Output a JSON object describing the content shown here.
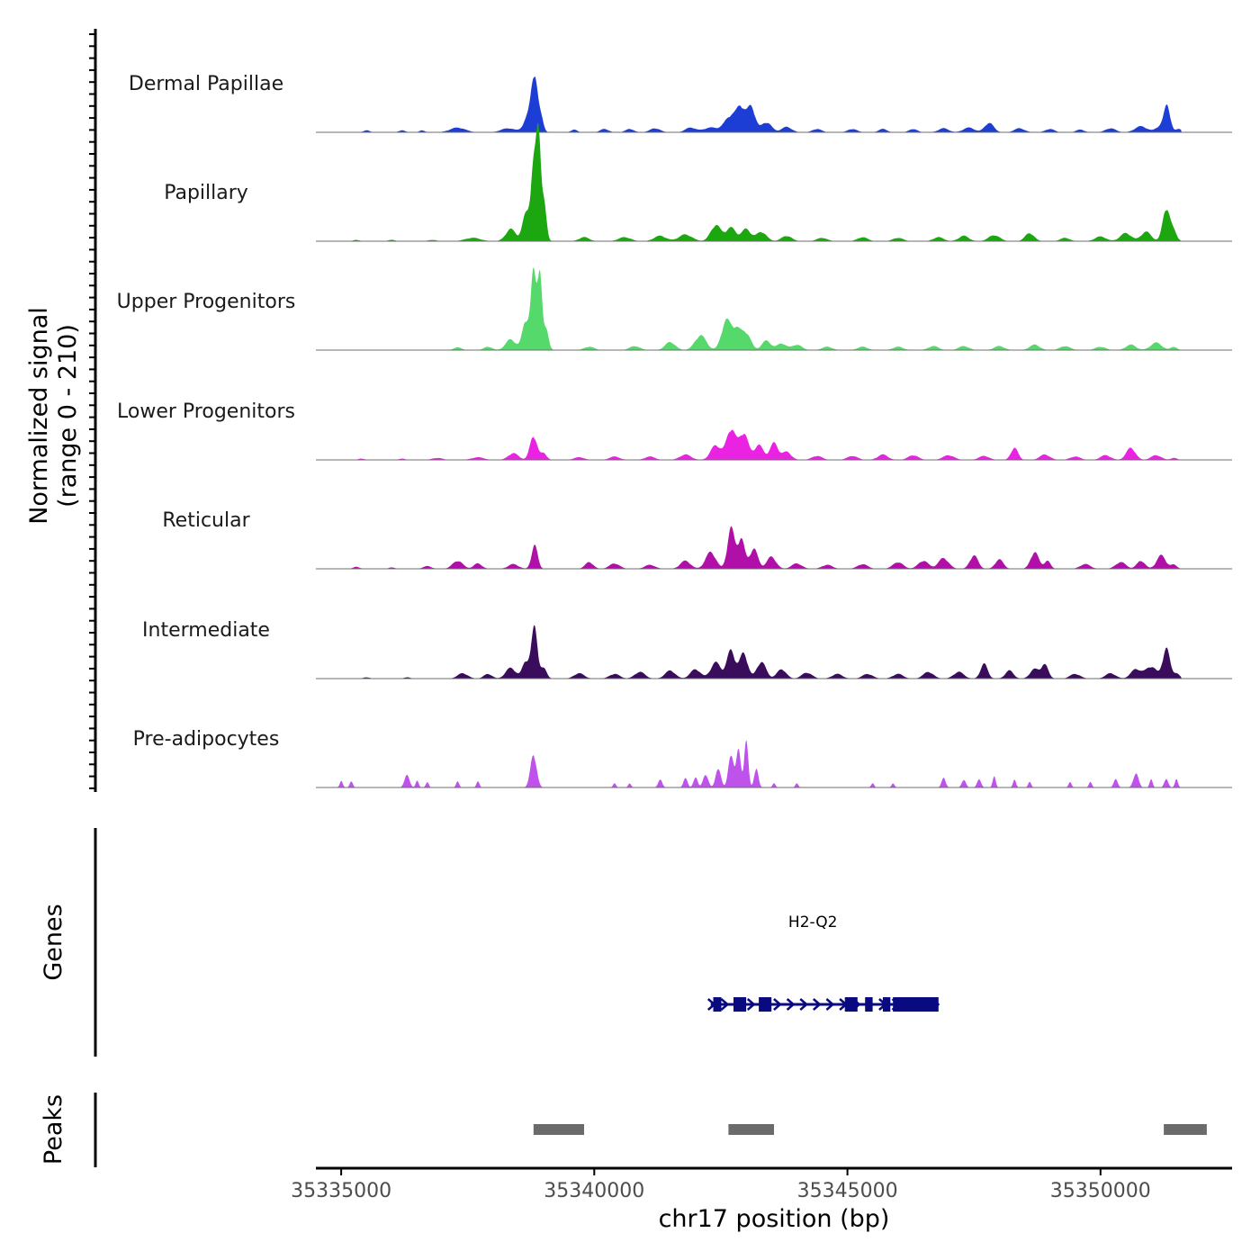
{
  "chart_data": {
    "type": "area",
    "title": "",
    "chromosome": "chr17",
    "xlabel": "chr17 position (bp)",
    "ylabel_line1": "Normalized signal",
    "ylabel_line2": "(range 0 - 210)",
    "xlim": [
      35334500,
      35352600
    ],
    "ylim": [
      0,
      210
    ],
    "x_ticks": [
      35335000,
      35340000,
      35345000,
      35350000
    ],
    "x_tick_labels": [
      "35335000",
      "35340000",
      "35345000",
      "35350000"
    ],
    "series": [
      {
        "name": "Dermal Papillae",
        "color": "#1c3ed4",
        "peaks": [
          [
            35335500,
            3,
            60
          ],
          [
            35336200,
            3,
            60
          ],
          [
            35336600,
            3,
            50
          ],
          [
            35337300,
            7,
            150
          ],
          [
            35338300,
            6,
            140
          ],
          [
            35338700,
            24,
            90
          ],
          [
            35338820,
            80,
            60
          ],
          [
            35338950,
            20,
            50
          ],
          [
            35339600,
            4,
            60
          ],
          [
            35340200,
            5,
            80
          ],
          [
            35340700,
            5,
            80
          ],
          [
            35341200,
            6,
            100
          ],
          [
            35341900,
            7,
            100
          ],
          [
            35342300,
            7,
            150
          ],
          [
            35342700,
            25,
            120
          ],
          [
            35342900,
            33,
            80
          ],
          [
            35343100,
            38,
            80
          ],
          [
            35343400,
            15,
            100
          ],
          [
            35343800,
            8,
            100
          ],
          [
            35344400,
            5,
            90
          ],
          [
            35345100,
            5,
            90
          ],
          [
            35345700,
            5,
            80
          ],
          [
            35346300,
            5,
            80
          ],
          [
            35346900,
            6,
            100
          ],
          [
            35347400,
            7,
            110
          ],
          [
            35347800,
            14,
            90
          ],
          [
            35348400,
            6,
            100
          ],
          [
            35349000,
            5,
            90
          ],
          [
            35349600,
            4,
            80
          ],
          [
            35350200,
            6,
            100
          ],
          [
            35350800,
            9,
            120
          ],
          [
            35351200,
            10,
            100
          ],
          [
            35351320,
            36,
            60
          ],
          [
            35351550,
            5,
            60
          ]
        ]
      },
      {
        "name": "Papillary",
        "color": "#1ca610",
        "peaks": [
          [
            35335300,
            2,
            60
          ],
          [
            35336000,
            2,
            70
          ],
          [
            35336800,
            2,
            80
          ],
          [
            35337600,
            5,
            150
          ],
          [
            35338350,
            18,
            100
          ],
          [
            35338650,
            40,
            70
          ],
          [
            35338800,
            110,
            55
          ],
          [
            35338900,
            140,
            45
          ],
          [
            35339000,
            60,
            50
          ],
          [
            35339800,
            6,
            100
          ],
          [
            35340600,
            6,
            120
          ],
          [
            35341300,
            8,
            120
          ],
          [
            35341800,
            10,
            130
          ],
          [
            35342400,
            24,
            100
          ],
          [
            35342700,
            20,
            100
          ],
          [
            35343000,
            18,
            90
          ],
          [
            35343300,
            14,
            100
          ],
          [
            35343800,
            8,
            100
          ],
          [
            35344500,
            5,
            100
          ],
          [
            35345300,
            6,
            100
          ],
          [
            35346000,
            5,
            100
          ],
          [
            35346800,
            6,
            100
          ],
          [
            35347300,
            8,
            100
          ],
          [
            35347900,
            9,
            110
          ],
          [
            35348600,
            12,
            90
          ],
          [
            35349300,
            5,
            90
          ],
          [
            35350000,
            7,
            110
          ],
          [
            35350500,
            12,
            110
          ],
          [
            35350900,
            14,
            100
          ],
          [
            35351300,
            50,
            70
          ],
          [
            35351450,
            14,
            60
          ]
        ]
      },
      {
        "name": "Upper Progenitors",
        "color": "#55d96a",
        "peaks": [
          [
            35337300,
            4,
            80
          ],
          [
            35337900,
            5,
            80
          ],
          [
            35338350,
            16,
            100
          ],
          [
            35338650,
            45,
            70
          ],
          [
            35338800,
            110,
            50
          ],
          [
            35338920,
            120,
            45
          ],
          [
            35339050,
            30,
            50
          ],
          [
            35339900,
            5,
            100
          ],
          [
            35340800,
            6,
            100
          ],
          [
            35341500,
            12,
            100
          ],
          [
            35342100,
            22,
            110
          ],
          [
            35342600,
            42,
            90
          ],
          [
            35342800,
            30,
            90
          ],
          [
            35343000,
            25,
            90
          ],
          [
            35343400,
            14,
            90
          ],
          [
            35343700,
            10,
            90
          ],
          [
            35344000,
            8,
            100
          ],
          [
            35344600,
            5,
            100
          ],
          [
            35345300,
            5,
            100
          ],
          [
            35346000,
            5,
            100
          ],
          [
            35346700,
            6,
            100
          ],
          [
            35347300,
            6,
            100
          ],
          [
            35348000,
            6,
            100
          ],
          [
            35348700,
            8,
            100
          ],
          [
            35349300,
            6,
            100
          ],
          [
            35350000,
            5,
            100
          ],
          [
            35350600,
            8,
            100
          ],
          [
            35351100,
            11,
            110
          ],
          [
            35351450,
            5,
            60
          ]
        ]
      },
      {
        "name": "Lower Progenitors",
        "color": "#ea22e2",
        "peaks": [
          [
            35335400,
            2,
            60
          ],
          [
            35336200,
            2,
            60
          ],
          [
            35336900,
            3,
            100
          ],
          [
            35337700,
            4,
            120
          ],
          [
            35338400,
            10,
            100
          ],
          [
            35338800,
            36,
            70
          ],
          [
            35339000,
            10,
            60
          ],
          [
            35339700,
            4,
            100
          ],
          [
            35340400,
            5,
            100
          ],
          [
            35341100,
            5,
            100
          ],
          [
            35341800,
            8,
            110
          ],
          [
            35342400,
            22,
            100
          ],
          [
            35342700,
            46,
            90
          ],
          [
            35342950,
            40,
            90
          ],
          [
            35343250,
            22,
            90
          ],
          [
            35343550,
            25,
            80
          ],
          [
            35343800,
            12,
            90
          ],
          [
            35344400,
            6,
            100
          ],
          [
            35345100,
            6,
            100
          ],
          [
            35345700,
            8,
            100
          ],
          [
            35346300,
            7,
            100
          ],
          [
            35347000,
            7,
            110
          ],
          [
            35347700,
            6,
            100
          ],
          [
            35348300,
            18,
            70
          ],
          [
            35348900,
            8,
            100
          ],
          [
            35349500,
            5,
            100
          ],
          [
            35350100,
            7,
            100
          ],
          [
            35350600,
            18,
            90
          ],
          [
            35351100,
            7,
            100
          ],
          [
            35351450,
            3,
            60
          ]
        ]
      },
      {
        "name": "Reticular",
        "color": "#b010a8",
        "peaks": [
          [
            35335300,
            3,
            60
          ],
          [
            35336000,
            2,
            60
          ],
          [
            35336700,
            4,
            80
          ],
          [
            35337300,
            12,
            100
          ],
          [
            35337700,
            8,
            80
          ],
          [
            35338400,
            7,
            100
          ],
          [
            35338820,
            35,
            60
          ],
          [
            35339900,
            10,
            80
          ],
          [
            35340400,
            8,
            100
          ],
          [
            35341100,
            6,
            100
          ],
          [
            35341800,
            12,
            100
          ],
          [
            35342300,
            25,
            100
          ],
          [
            35342700,
            60,
            70
          ],
          [
            35342900,
            45,
            70
          ],
          [
            35343150,
            30,
            80
          ],
          [
            35343500,
            18,
            90
          ],
          [
            35344000,
            8,
            100
          ],
          [
            35344600,
            6,
            100
          ],
          [
            35345300,
            7,
            100
          ],
          [
            35346000,
            10,
            100
          ],
          [
            35346500,
            12,
            100
          ],
          [
            35346900,
            16,
            100
          ],
          [
            35347500,
            20,
            80
          ],
          [
            35348000,
            14,
            80
          ],
          [
            35348700,
            25,
            80
          ],
          [
            35348950,
            12,
            60
          ],
          [
            35349700,
            7,
            100
          ],
          [
            35350400,
            10,
            100
          ],
          [
            35350800,
            12,
            80
          ],
          [
            35351200,
            20,
            90
          ],
          [
            35351450,
            6,
            60
          ]
        ]
      },
      {
        "name": "Intermediate",
        "color": "#3a0d5c",
        "peaks": [
          [
            35335500,
            2,
            60
          ],
          [
            35336300,
            2,
            60
          ],
          [
            35337400,
            8,
            100
          ],
          [
            35337900,
            7,
            80
          ],
          [
            35338350,
            16,
            100
          ],
          [
            35338650,
            26,
            70
          ],
          [
            35338820,
            75,
            60
          ],
          [
            35339000,
            15,
            60
          ],
          [
            35339700,
            8,
            100
          ],
          [
            35340400,
            7,
            100
          ],
          [
            35340900,
            10,
            100
          ],
          [
            35341500,
            12,
            100
          ],
          [
            35342000,
            14,
            100
          ],
          [
            35342400,
            24,
            100
          ],
          [
            35342700,
            42,
            80
          ],
          [
            35342950,
            38,
            80
          ],
          [
            35343300,
            25,
            90
          ],
          [
            35343700,
            14,
            90
          ],
          [
            35344200,
            9,
            100
          ],
          [
            35344800,
            7,
            100
          ],
          [
            35345400,
            7,
            100
          ],
          [
            35346000,
            7,
            100
          ],
          [
            35346600,
            10,
            100
          ],
          [
            35347200,
            10,
            100
          ],
          [
            35347700,
            22,
            70
          ],
          [
            35348200,
            12,
            80
          ],
          [
            35348700,
            14,
            90
          ],
          [
            35348900,
            20,
            70
          ],
          [
            35349500,
            7,
            100
          ],
          [
            35350200,
            8,
            100
          ],
          [
            35350700,
            14,
            100
          ],
          [
            35351000,
            18,
            110
          ],
          [
            35351300,
            45,
            70
          ],
          [
            35351500,
            8,
            60
          ]
        ]
      },
      {
        "name": "Pre-adipocytes",
        "color": "#c052ec",
        "peaks": [
          [
            35335000,
            10,
            30
          ],
          [
            35335200,
            10,
            30
          ],
          [
            35336300,
            18,
            50
          ],
          [
            35336500,
            10,
            30
          ],
          [
            35336700,
            8,
            30
          ],
          [
            35337300,
            9,
            30
          ],
          [
            35337700,
            9,
            30
          ],
          [
            35338800,
            50,
            60
          ],
          [
            35340400,
            6,
            30
          ],
          [
            35340700,
            6,
            30
          ],
          [
            35341300,
            12,
            40
          ],
          [
            35341800,
            14,
            40
          ],
          [
            35342000,
            16,
            40
          ],
          [
            35342200,
            20,
            50
          ],
          [
            35342450,
            30,
            50
          ],
          [
            35342700,
            52,
            50
          ],
          [
            35342850,
            55,
            45
          ],
          [
            35343000,
            70,
            40
          ],
          [
            35343200,
            30,
            40
          ],
          [
            35343550,
            6,
            30
          ],
          [
            35344000,
            6,
            30
          ],
          [
            35345500,
            6,
            30
          ],
          [
            35345900,
            6,
            30
          ],
          [
            35346900,
            14,
            40
          ],
          [
            35347300,
            12,
            40
          ],
          [
            35347600,
            12,
            40
          ],
          [
            35347900,
            16,
            30
          ],
          [
            35348300,
            12,
            30
          ],
          [
            35348600,
            8,
            30
          ],
          [
            35349400,
            8,
            30
          ],
          [
            35349800,
            8,
            30
          ],
          [
            35350300,
            12,
            40
          ],
          [
            35350700,
            22,
            50
          ],
          [
            35351000,
            12,
            30
          ],
          [
            35351300,
            12,
            40
          ],
          [
            35351500,
            12,
            30
          ]
        ]
      }
    ],
    "genes": [
      {
        "name": "H2-Q2",
        "strand": "+",
        "start": 35342300,
        "end": 35346800,
        "color": "#0a0a80",
        "exons": [
          [
            35342350,
            35342510
          ],
          [
            35342750,
            35343000
          ],
          [
            35343250,
            35343500
          ],
          [
            35344950,
            35345200
          ],
          [
            35345350,
            35345500
          ],
          [
            35345700,
            35345850
          ],
          [
            35345900,
            35346800
          ]
        ]
      }
    ],
    "peaks_track": [
      [
        35338800,
        35339800
      ],
      [
        35342650,
        35343550
      ],
      [
        35351250,
        35352100
      ]
    ],
    "peak_color": "#6b6b6b",
    "panel_titles": {
      "genes": "Genes",
      "peaks": "Peaks"
    }
  }
}
